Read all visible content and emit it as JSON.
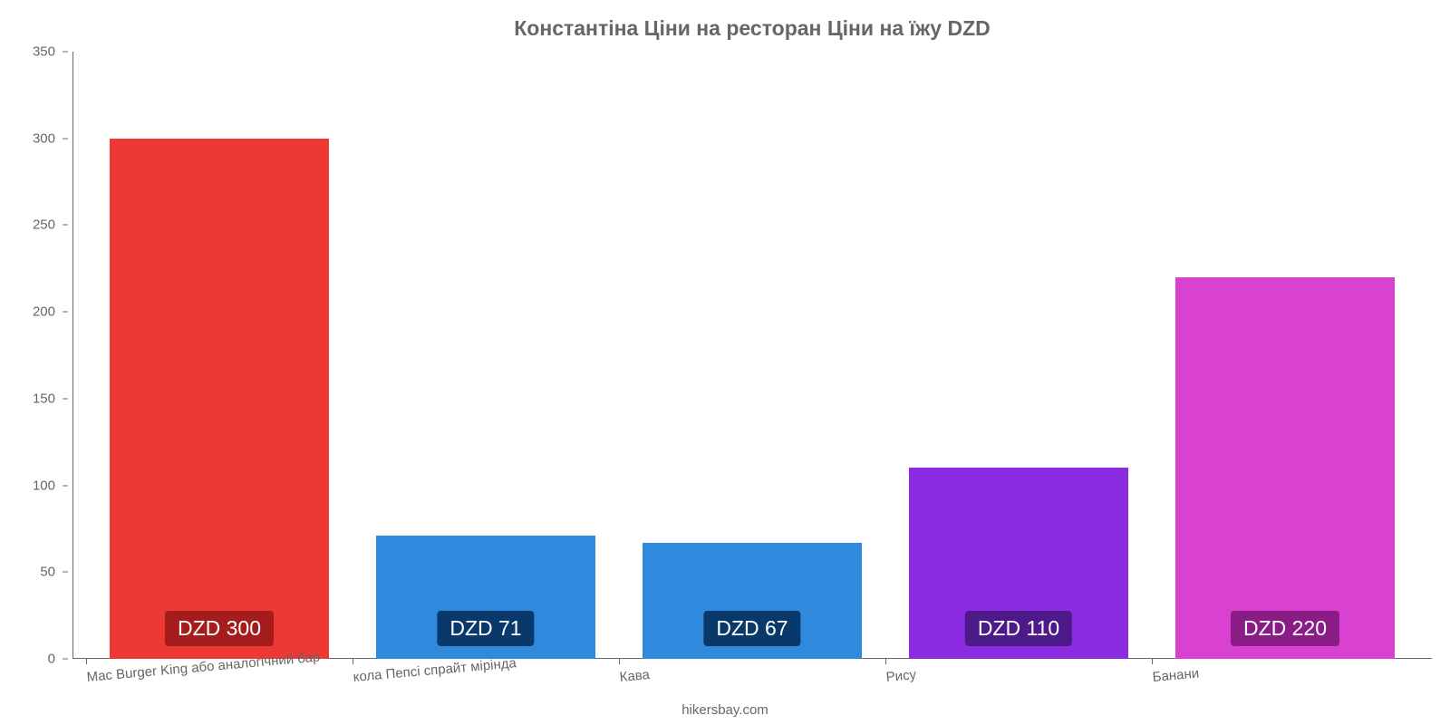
{
  "chart": {
    "type": "bar",
    "title": "Константіна Ціни на ресторан Ціни на їжу DZD",
    "title_color": "#666666",
    "title_fontsize": 23,
    "background_color": "#ffffff",
    "axis_color": "#666666",
    "tick_label_color": "#666666",
    "tick_label_fontsize": 15,
    "x_label_rotation_deg": -5,
    "ylim": [
      0,
      350
    ],
    "ytick_step": 50,
    "yticks": [
      0,
      50,
      100,
      150,
      200,
      250,
      300,
      350
    ],
    "categories": [
      "Mac Burger King або аналогічний бар",
      "кола Пепсі спрайт мірінда",
      "Кава",
      "Рису",
      "Банани"
    ],
    "values": [
      300,
      71,
      67,
      110,
      220
    ],
    "value_labels": [
      "DZD 300",
      "DZD 71",
      "DZD 67",
      "DZD 110",
      "DZD 220"
    ],
    "bar_colors": [
      "#ed3833",
      "#2f8ade",
      "#2f8ade",
      "#8b2be2",
      "#d941d0"
    ],
    "badge_colors": [
      "#a51c1c",
      "#09396a",
      "#09396a",
      "#4d1a8a",
      "#8a1c85"
    ],
    "badge_text_color": "#ffffff",
    "badge_fontsize": 23,
    "bar_width": 0.88,
    "attribution": "hikersbay.com"
  }
}
